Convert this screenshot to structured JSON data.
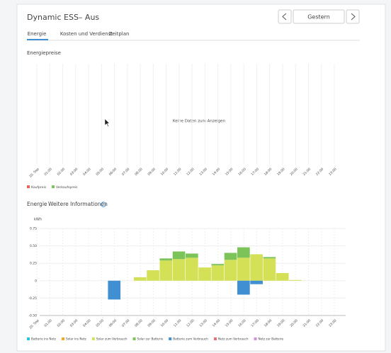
{
  "header": {
    "title": "Dynamic ESS– Aus",
    "date": "Gestern"
  },
  "tabs": [
    "Energie",
    "Kosten und Verdienst",
    "Zeitplan"
  ],
  "price_chart": {
    "title": "Energiepreise",
    "empty_message": "Keine Daten zum Anzeigen",
    "categories": [
      "20. Sep",
      "01:00",
      "02:00",
      "03:00",
      "04:00",
      "05:00",
      "06:00",
      "07:00",
      "08:00",
      "09:00",
      "10:00",
      "11:00",
      "12:00",
      "13:00",
      "14:00",
      "15:00",
      "16:00",
      "17:00",
      "18:00",
      "19:00",
      "20:00",
      "21:00",
      "22:00",
      "23:00"
    ],
    "legend": [
      {
        "name": "Kaufpreis",
        "color": "#e8635a"
      },
      {
        "name": "Verkaufspreis",
        "color": "#7cc35a"
      }
    ]
  },
  "chart_data": {
    "type": "bar",
    "stacked": true,
    "title": "Energie",
    "link": "Weitere Informationen",
    "y_unit": "kWh",
    "categories": [
      "20. Sep",
      "01:00",
      "02:00",
      "03:00",
      "04:00",
      "05:00",
      "06:00",
      "07:00",
      "08:00",
      "09:00",
      "10:00",
      "11:00",
      "12:00",
      "13:00",
      "14:00",
      "15:00",
      "16:00",
      "17:00",
      "18:00",
      "19:00",
      "20:00",
      "21:00",
      "22:00",
      "23:00"
    ],
    "ylim": [
      -0.5,
      0.75
    ],
    "yticks": [
      0.75,
      {
        "value": 0.5,
        "label": "0.50"
      },
      0.25,
      0,
      -0.25,
      {
        "value": -0.5,
        "label": "-0.50"
      }
    ],
    "grid": true,
    "series": [
      {
        "name": "Batterie ins Netz",
        "color": "#26c6da",
        "values": [
          null,
          null,
          null,
          null,
          null,
          null,
          null,
          null,
          null,
          null,
          null,
          null,
          null,
          null,
          null,
          null,
          null,
          null,
          null,
          null,
          null,
          null,
          null,
          null
        ]
      },
      {
        "name": "Solar ins Netz",
        "color": "#f5a623",
        "values": [
          null,
          null,
          null,
          null,
          null,
          null,
          null,
          null,
          null,
          null,
          null,
          null,
          null,
          null,
          null,
          null,
          null,
          null,
          null,
          null,
          null,
          null,
          null,
          null
        ]
      },
      {
        "name": "Solar zum Verbrauch",
        "color": "#d4e157",
        "values": [
          null,
          null,
          null,
          null,
          null,
          null,
          null,
          null,
          0.05,
          0.15,
          0.29,
          0.31,
          0.33,
          0.19,
          0.22,
          0.3,
          0.33,
          0.38,
          0.32,
          0.11,
          0.01,
          null,
          null,
          null
        ]
      },
      {
        "name": "Solar zur Batterie",
        "color": "#7cc35a",
        "values": [
          null,
          null,
          null,
          null,
          null,
          null,
          null,
          null,
          null,
          null,
          0.03,
          0.11,
          0.06,
          null,
          0.02,
          0.1,
          0.15,
          null,
          0.02,
          null,
          null,
          null,
          null,
          null
        ]
      },
      {
        "name": "Batterie zum Verbrauch",
        "color": "#3f8fd2",
        "values": [
          null,
          null,
          null,
          null,
          null,
          null,
          -0.27,
          null,
          null,
          null,
          null,
          null,
          null,
          null,
          null,
          null,
          -0.2,
          -0.05,
          null,
          null,
          null,
          null,
          null,
          null
        ]
      },
      {
        "name": "Netz zum Verbrauch",
        "color": "#e57373",
        "values": [
          null,
          null,
          null,
          null,
          null,
          null,
          null,
          null,
          null,
          null,
          null,
          null,
          null,
          null,
          null,
          null,
          null,
          null,
          null,
          null,
          null,
          null,
          null,
          null
        ]
      },
      {
        "name": "Netz zur Batterie",
        "color": "#ce93d8",
        "values": [
          null,
          null,
          null,
          null,
          null,
          null,
          null,
          null,
          null,
          null,
          null,
          null,
          null,
          null,
          null,
          null,
          null,
          null,
          null,
          null,
          null,
          null,
          null,
          null
        ]
      }
    ]
  }
}
